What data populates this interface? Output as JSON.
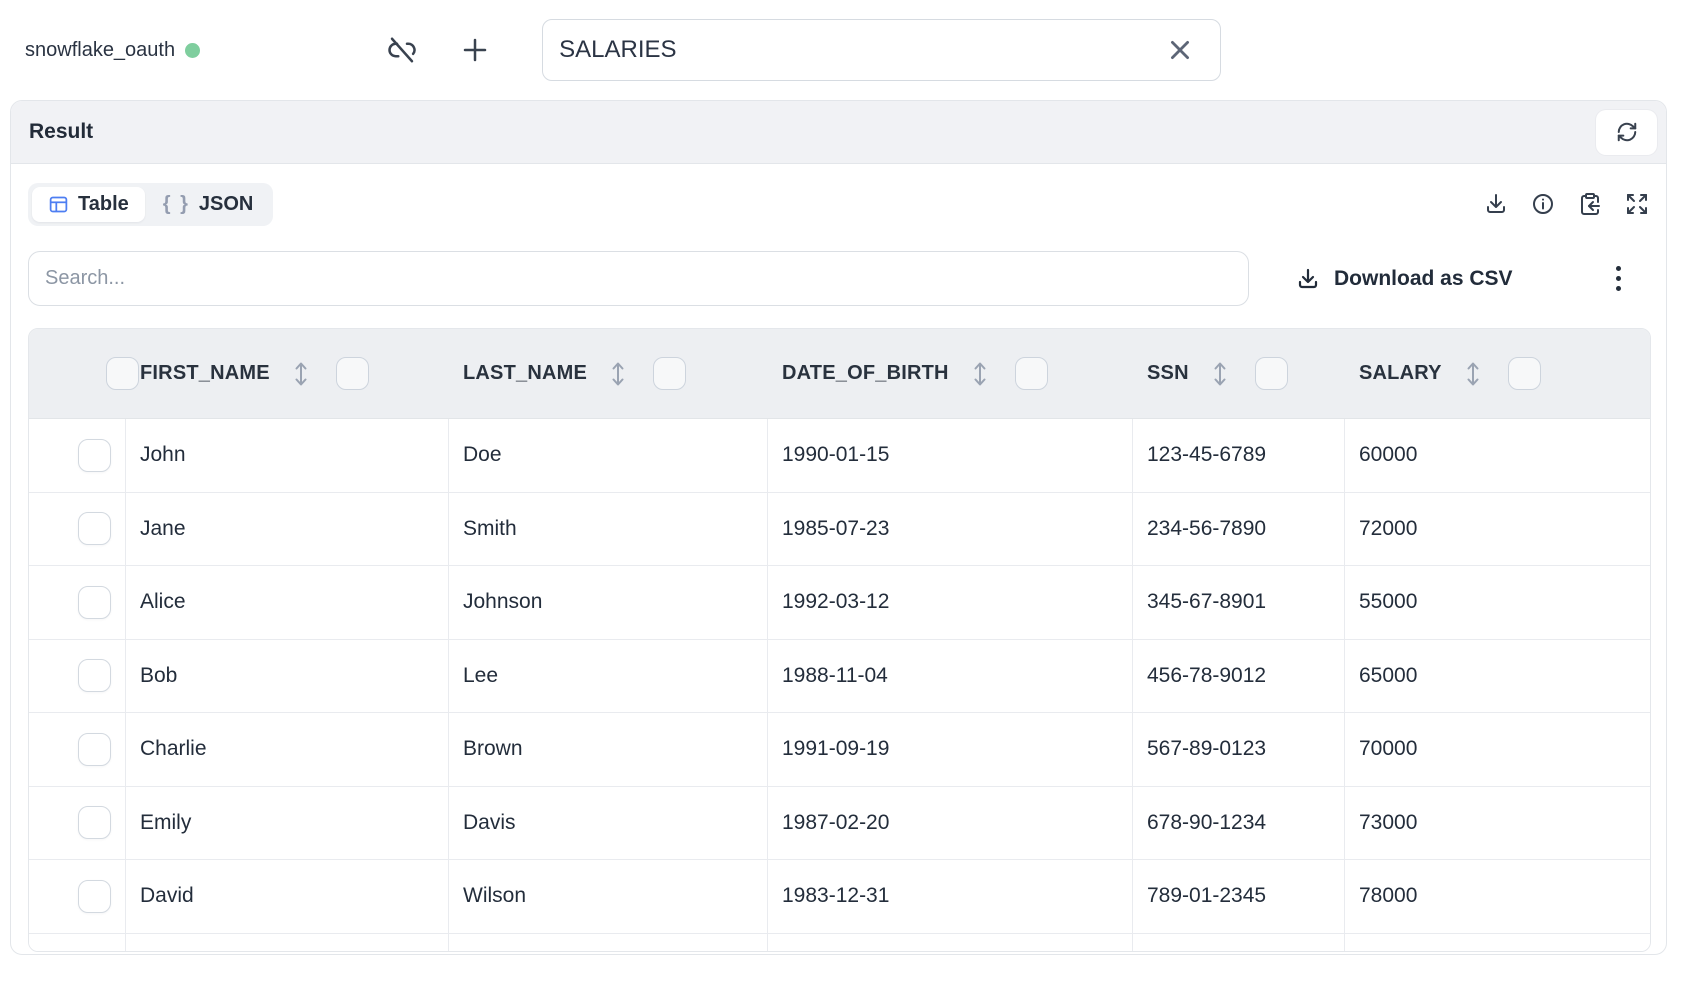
{
  "topbar": {
    "connection_name": "snowflake_oauth",
    "connection_status": "connected",
    "table_name_value": "SALARIES"
  },
  "panel": {
    "title": "Result"
  },
  "toolbar": {
    "tabs": [
      {
        "label": "Table",
        "active": true
      },
      {
        "label": "JSON",
        "active": false
      }
    ],
    "icons": [
      "download-icon",
      "info-icon",
      "clipboard-paste-icon",
      "expand-icon"
    ]
  },
  "search": {
    "placeholder": "Search...",
    "value": ""
  },
  "actions": {
    "download_csv_label": "Download as CSV"
  },
  "table": {
    "columns": [
      "FIRST_NAME",
      "LAST_NAME",
      "DATE_OF_BIRTH",
      "SSN",
      "SALARY"
    ],
    "rows": [
      [
        "John",
        "Doe",
        "1990-01-15",
        "123-45-6789",
        "60000"
      ],
      [
        "Jane",
        "Smith",
        "1985-07-23",
        "234-56-7890",
        "72000"
      ],
      [
        "Alice",
        "Johnson",
        "1992-03-12",
        "345-67-8901",
        "55000"
      ],
      [
        "Bob",
        "Lee",
        "1988-11-04",
        "456-78-9012",
        "65000"
      ],
      [
        "Charlie",
        "Brown",
        "1991-09-19",
        "567-89-0123",
        "70000"
      ],
      [
        "Emily",
        "Davis",
        "1987-02-20",
        "678-90-1234",
        "73000"
      ],
      [
        "David",
        "Wilson",
        "1983-12-31",
        "789-01-2345",
        "78000"
      ]
    ]
  },
  "colors": {
    "status_green": "#7fce9e",
    "accent_blue": "#4d7ef2",
    "panel_header_bg": "#f1f2f5",
    "table_header_bg": "#edeff2",
    "border": "#e3e6ea",
    "text_dark": "#242e3c",
    "icon_slate": "#39424f",
    "placeholder_gray": "#8c96a4"
  }
}
